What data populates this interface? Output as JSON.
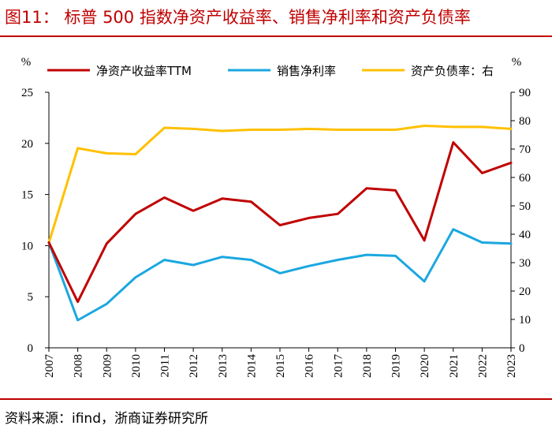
{
  "title": "图11： 标普 500 指数净资产收益率、销售净利率和资产负债率",
  "source": "资料来源：ifind，浙商证券研究所",
  "colors": {
    "roe": "#c00000",
    "margin": "#1aa7e0",
    "debt": "#ffc000",
    "title": "#c00000"
  },
  "chart_data": {
    "type": "line",
    "x": [
      "2007",
      "2008",
      "2009",
      "2010",
      "2011",
      "2012",
      "2013",
      "2014",
      "2015",
      "2016",
      "2017",
      "2018",
      "2019",
      "2020",
      "2021",
      "2022",
      "2023"
    ],
    "left_axis": {
      "unit": "%",
      "ylim": [
        0,
        25
      ],
      "ticks": [
        "0",
        "5",
        "10",
        "15",
        "20",
        "25"
      ]
    },
    "right_axis": {
      "unit": "%",
      "ylim": [
        0,
        90
      ],
      "ticks": [
        "0",
        "10",
        "20",
        "30",
        "40",
        "50",
        "60",
        "70",
        "80",
        "90"
      ]
    },
    "series": [
      {
        "name": "净资产收益率TTM",
        "axis": "left",
        "color": "#c00000",
        "values": [
          10.3,
          4.5,
          10.2,
          13.1,
          14.7,
          13.4,
          14.6,
          14.3,
          12.0,
          12.7,
          13.1,
          15.6,
          15.4,
          10.5,
          20.1,
          17.1,
          18.1
        ]
      },
      {
        "name": "销售净利率",
        "axis": "left",
        "color": "#1aa7e0",
        "values": [
          10.3,
          2.7,
          4.3,
          6.9,
          8.6,
          8.1,
          8.9,
          8.6,
          7.3,
          8.0,
          8.6,
          9.1,
          9.0,
          6.5,
          11.6,
          10.3,
          10.2
        ]
      },
      {
        "name": "资产负债率：右",
        "axis": "right",
        "color": "#ffc000",
        "values": [
          37.0,
          70.3,
          68.5,
          68.2,
          77.5,
          77.1,
          76.4,
          76.8,
          76.8,
          77.1,
          76.8,
          76.8,
          76.8,
          78.2,
          77.8,
          77.8,
          77.1
        ]
      }
    ]
  }
}
